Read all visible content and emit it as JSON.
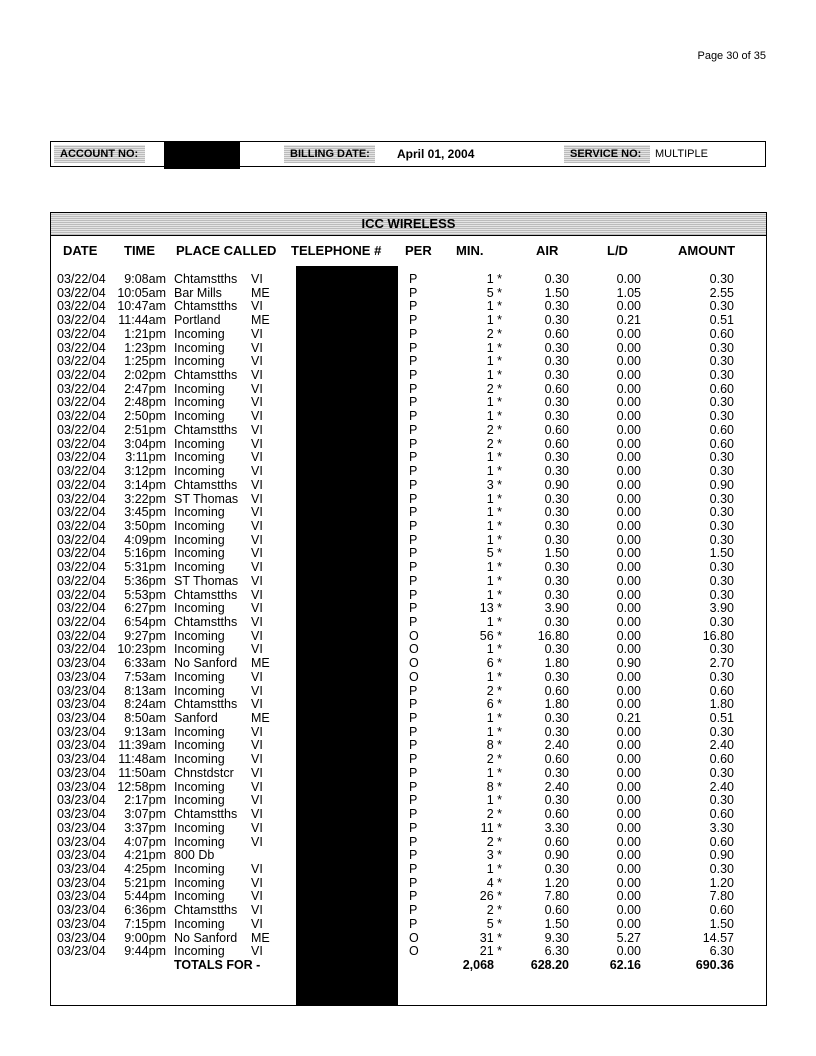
{
  "page_label": "Page 30  of  35",
  "account": {
    "account_label": "ACCOUNT NO:",
    "billing_label": "BILLING DATE:",
    "billing_date": "April  01, 2004",
    "service_label": "SERVICE NO:",
    "service_no": "MULTIPLE"
  },
  "table": {
    "title": "ICC WIRELESS",
    "headers": [
      "DATE",
      "TIME",
      "PLACE CALLED",
      "TELEPHONE #",
      "PER",
      "MIN.",
      "AIR",
      "L/D",
      "AMOUNT"
    ],
    "rows": [
      [
        "03/22/04",
        "9:08am",
        "Chtamstths",
        "VI",
        "P",
        "1 *",
        "0.30",
        "0.00",
        "0.30"
      ],
      [
        "03/22/04",
        "10:05am",
        "Bar Mills",
        "ME",
        "P",
        "5 *",
        "1.50",
        "1.05",
        "2.55"
      ],
      [
        "03/22/04",
        "10:47am",
        "Chtamstths",
        "VI",
        "P",
        "1 *",
        "0.30",
        "0.00",
        "0.30"
      ],
      [
        "03/22/04",
        "11:44am",
        "Portland",
        "ME",
        "P",
        "1 *",
        "0.30",
        "0.21",
        "0.51"
      ],
      [
        "03/22/04",
        "1:21pm",
        "Incoming",
        "VI",
        "P",
        "2 *",
        "0.60",
        "0.00",
        "0.60"
      ],
      [
        "03/22/04",
        "1:23pm",
        "Incoming",
        "VI",
        "P",
        "1 *",
        "0.30",
        "0.00",
        "0.30"
      ],
      [
        "03/22/04",
        "1:25pm",
        "Incoming",
        "VI",
        "P",
        "1 *",
        "0.30",
        "0.00",
        "0.30"
      ],
      [
        "03/22/04",
        "2:02pm",
        "Chtamstths",
        "VI",
        "P",
        "1 *",
        "0.30",
        "0.00",
        "0.30"
      ],
      [
        "03/22/04",
        "2:47pm",
        "Incoming",
        "VI",
        "P",
        "2 *",
        "0.60",
        "0.00",
        "0.60"
      ],
      [
        "03/22/04",
        "2:48pm",
        "Incoming",
        "VI",
        "P",
        "1 *",
        "0.30",
        "0.00",
        "0.30"
      ],
      [
        "03/22/04",
        "2:50pm",
        "Incoming",
        "VI",
        "P",
        "1 *",
        "0.30",
        "0.00",
        "0.30"
      ],
      [
        "03/22/04",
        "2:51pm",
        "Chtamstths",
        "VI",
        "P",
        "2 *",
        "0.60",
        "0.00",
        "0.60"
      ],
      [
        "03/22/04",
        "3:04pm",
        "Incoming",
        "VI",
        "P",
        "2 *",
        "0.60",
        "0.00",
        "0.60"
      ],
      [
        "03/22/04",
        "3:11pm",
        "Incoming",
        "VI",
        "P",
        "1 *",
        "0.30",
        "0.00",
        "0.30"
      ],
      [
        "03/22/04",
        "3:12pm",
        "Incoming",
        "VI",
        "P",
        "1 *",
        "0.30",
        "0.00",
        "0.30"
      ],
      [
        "03/22/04",
        "3:14pm",
        "Chtamstths",
        "VI",
        "P",
        "3 *",
        "0.90",
        "0.00",
        "0.90"
      ],
      [
        "03/22/04",
        "3:22pm",
        "ST Thomas",
        "VI",
        "P",
        "1 *",
        "0.30",
        "0.00",
        "0.30"
      ],
      [
        "03/22/04",
        "3:45pm",
        "Incoming",
        "VI",
        "P",
        "1 *",
        "0.30",
        "0.00",
        "0.30"
      ],
      [
        "03/22/04",
        "3:50pm",
        "Incoming",
        "VI",
        "P",
        "1 *",
        "0.30",
        "0.00",
        "0.30"
      ],
      [
        "03/22/04",
        "4:09pm",
        "Incoming",
        "VI",
        "P",
        "1 *",
        "0.30",
        "0.00",
        "0.30"
      ],
      [
        "03/22/04",
        "5:16pm",
        "Incoming",
        "VI",
        "P",
        "5 *",
        "1.50",
        "0.00",
        "1.50"
      ],
      [
        "03/22/04",
        "5:31pm",
        "Incoming",
        "VI",
        "P",
        "1 *",
        "0.30",
        "0.00",
        "0.30"
      ],
      [
        "03/22/04",
        "5:36pm",
        "ST Thomas",
        "VI",
        "P",
        "1 *",
        "0.30",
        "0.00",
        "0.30"
      ],
      [
        "03/22/04",
        "5:53pm",
        "Chtamstths",
        "VI",
        "P",
        "1 *",
        "0.30",
        "0.00",
        "0.30"
      ],
      [
        "03/22/04",
        "6:27pm",
        "Incoming",
        "VI",
        "P",
        "13 *",
        "3.90",
        "0.00",
        "3.90"
      ],
      [
        "03/22/04",
        "6:54pm",
        "Chtamstths",
        "VI",
        "P",
        "1 *",
        "0.30",
        "0.00",
        "0.30"
      ],
      [
        "03/22/04",
        "9:27pm",
        "Incoming",
        "VI",
        "O",
        "56 *",
        "16.80",
        "0.00",
        "16.80"
      ],
      [
        "03/22/04",
        "10:23pm",
        "Incoming",
        "VI",
        "O",
        "1 *",
        "0.30",
        "0.00",
        "0.30"
      ],
      [
        "03/23/04",
        "6:33am",
        "No Sanford",
        "ME",
        "O",
        "6 *",
        "1.80",
        "0.90",
        "2.70"
      ],
      [
        "03/23/04",
        "7:53am",
        "Incoming",
        "VI",
        "O",
        "1 *",
        "0.30",
        "0.00",
        "0.30"
      ],
      [
        "03/23/04",
        "8:13am",
        "Incoming",
        "VI",
        "P",
        "2 *",
        "0.60",
        "0.00",
        "0.60"
      ],
      [
        "03/23/04",
        "8:24am",
        "Chtamstths",
        "VI",
        "P",
        "6 *",
        "1.80",
        "0.00",
        "1.80"
      ],
      [
        "03/23/04",
        "8:50am",
        "Sanford",
        "ME",
        "P",
        "1 *",
        "0.30",
        "0.21",
        "0.51"
      ],
      [
        "03/23/04",
        "9:13am",
        "Incoming",
        "VI",
        "P",
        "1 *",
        "0.30",
        "0.00",
        "0.30"
      ],
      [
        "03/23/04",
        "11:39am",
        "Incoming",
        "VI",
        "P",
        "8 *",
        "2.40",
        "0.00",
        "2.40"
      ],
      [
        "03/23/04",
        "11:48am",
        "Incoming",
        "VI",
        "P",
        "2 *",
        "0.60",
        "0.00",
        "0.60"
      ],
      [
        "03/23/04",
        "11:50am",
        "Chnstdstcr",
        "VI",
        "P",
        "1 *",
        "0.30",
        "0.00",
        "0.30"
      ],
      [
        "03/23/04",
        "12:58pm",
        "Incoming",
        "VI",
        "P",
        "8 *",
        "2.40",
        "0.00",
        "2.40"
      ],
      [
        "03/23/04",
        "2:17pm",
        "Incoming",
        "VI",
        "P",
        "1 *",
        "0.30",
        "0.00",
        "0.30"
      ],
      [
        "03/23/04",
        "3:07pm",
        "Chtamstths",
        "VI",
        "P",
        "2 *",
        "0.60",
        "0.00",
        "0.60"
      ],
      [
        "03/23/04",
        "3:37pm",
        "Incoming",
        "VI",
        "P",
        "11 *",
        "3.30",
        "0.00",
        "3.30"
      ],
      [
        "03/23/04",
        "4:07pm",
        "Incoming",
        "VI",
        "P",
        "2 *",
        "0.60",
        "0.00",
        "0.60"
      ],
      [
        "03/23/04",
        "4:21pm",
        "800 Db",
        "",
        "P",
        "3 *",
        "0.90",
        "0.00",
        "0.90"
      ],
      [
        "03/23/04",
        "4:25pm",
        "Incoming",
        "VI",
        "P",
        "1 *",
        "0.30",
        "0.00",
        "0.30"
      ],
      [
        "03/23/04",
        "5:21pm",
        "Incoming",
        "VI",
        "P",
        "4 *",
        "1.20",
        "0.00",
        "1.20"
      ],
      [
        "03/23/04",
        "5:44pm",
        "Incoming",
        "VI",
        "P",
        "26 *",
        "7.80",
        "0.00",
        "7.80"
      ],
      [
        "03/23/04",
        "6:36pm",
        "Chtamstths",
        "VI",
        "P",
        "2 *",
        "0.60",
        "0.00",
        "0.60"
      ],
      [
        "03/23/04",
        "7:15pm",
        "Incoming",
        "VI",
        "P",
        "5 *",
        "1.50",
        "0.00",
        "1.50"
      ],
      [
        "03/23/04",
        "9:00pm",
        "No Sanford",
        "ME",
        "O",
        "31 *",
        "9.30",
        "5.27",
        "14.57"
      ],
      [
        "03/23/04",
        "9:44pm",
        "Incoming",
        "VI",
        "O",
        "21 *",
        "6.30",
        "0.00",
        "6.30"
      ]
    ],
    "totals": {
      "label": "TOTALS FOR -",
      "min": "2,068",
      "air": "628.20",
      "ld": "62.16",
      "amount": "690.36"
    }
  }
}
